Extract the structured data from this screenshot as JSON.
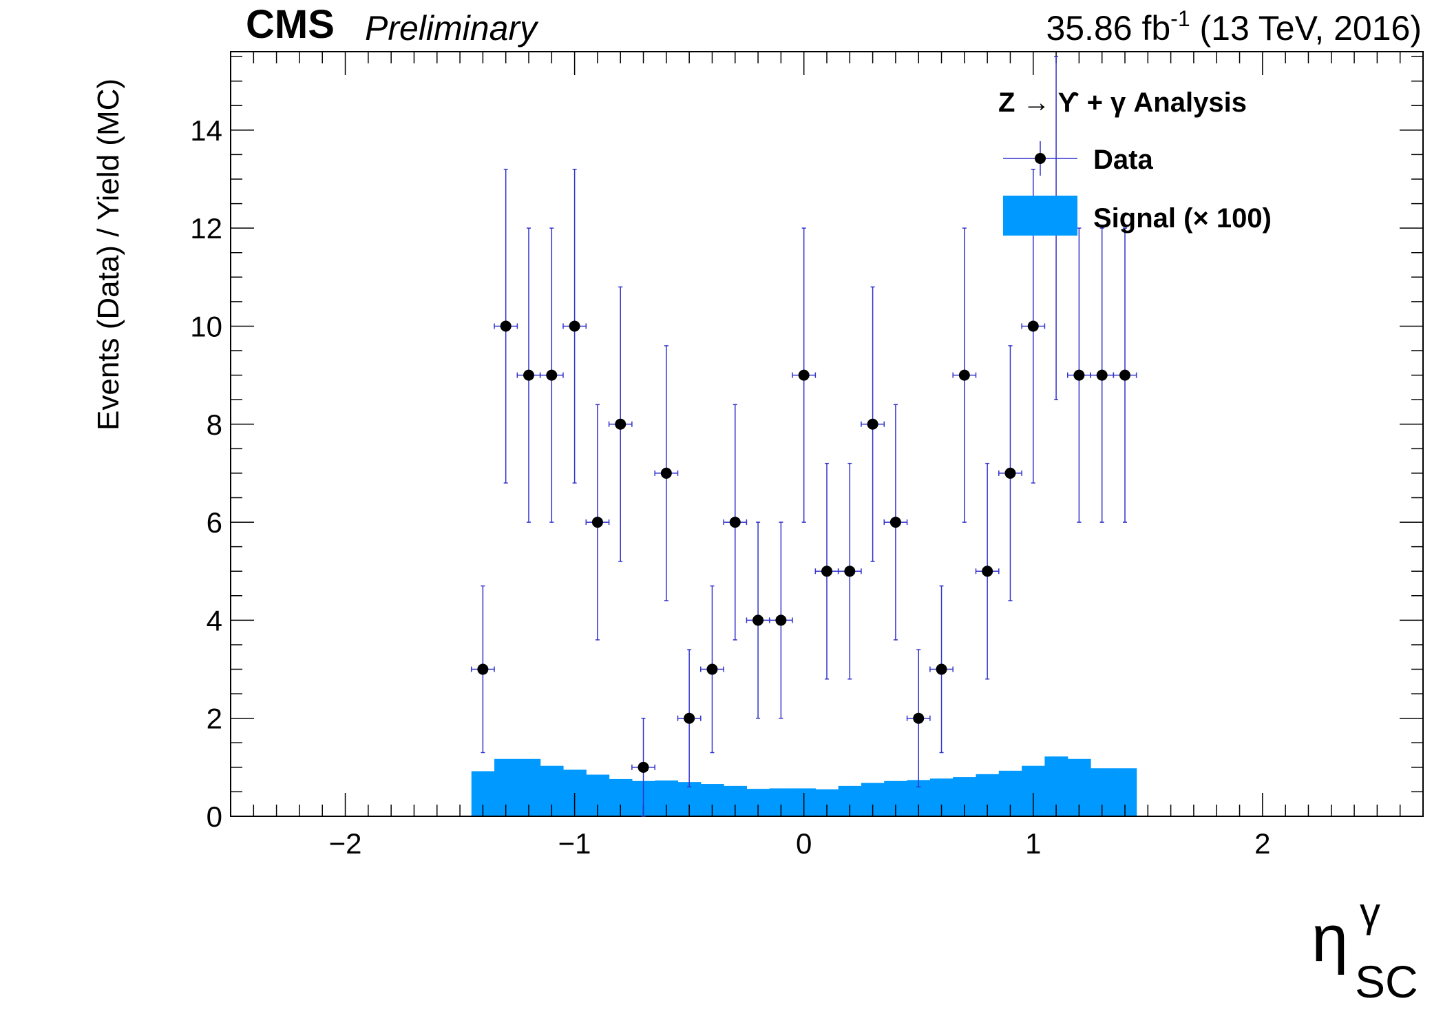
{
  "header": {
    "experiment": "CMS",
    "status": "Preliminary",
    "lumi_value": "35.86 fb",
    "lumi_exp": "-1",
    "lumi_tail": " (13 TeV, 2016)"
  },
  "legend": {
    "header": "Z → ϒ + γ Analysis",
    "data_label": "Data",
    "signal_label": "Signal (× 100)"
  },
  "colors": {
    "signal_fill": "#0099ff",
    "error_bar": "#3333cc",
    "marker": "#000000"
  },
  "chart_data": {
    "type": "bar",
    "title": "",
    "xlabel": "η",
    "xlabel_sup": "γ",
    "xlabel_sub": "SC",
    "ylabel": "Events (Data) / Yield (MC)",
    "xlim": [
      -2.5,
      2.7
    ],
    "ylim": [
      0,
      15.6
    ],
    "x_ticks": [
      -2,
      -1,
      0,
      1,
      2
    ],
    "x_tick_labels": [
      "−2",
      "−1",
      "0",
      "1",
      "2"
    ],
    "y_ticks": [
      0,
      2,
      4,
      6,
      8,
      10,
      12,
      14
    ],
    "y_tick_labels": [
      "0",
      "2",
      "4",
      "6",
      "8",
      "10",
      "12",
      "14"
    ],
    "grid": false,
    "legend_position": "top-right",
    "series": [
      {
        "name": "Data",
        "kind": "points-with-errors",
        "x": [
          -1.4,
          -1.3,
          -1.2,
          -1.1,
          -1.0,
          -0.9,
          -0.8,
          -0.7,
          -0.6,
          -0.5,
          -0.4,
          -0.3,
          -0.2,
          -0.1,
          0.0,
          0.1,
          0.2,
          0.3,
          0.4,
          0.5,
          0.6,
          0.7,
          0.8,
          0.9,
          1.0,
          1.1,
          1.2,
          1.3,
          1.4
        ],
        "y": [
          3,
          10,
          9,
          9,
          10,
          6,
          8,
          1,
          7,
          2,
          3,
          6,
          4,
          4,
          9,
          5,
          5,
          8,
          6,
          2,
          3,
          9,
          5,
          7,
          10,
          12,
          9,
          9,
          9
        ],
        "yerr_low": [
          1.7,
          3.2,
          3.0,
          3.0,
          3.2,
          2.4,
          2.8,
          1.0,
          2.6,
          1.4,
          1.7,
          2.4,
          2.0,
          2.0,
          3.0,
          2.2,
          2.2,
          2.8,
          2.4,
          1.4,
          1.7,
          3.0,
          2.2,
          2.6,
          3.2,
          3.5,
          3.0,
          3.0,
          3.0
        ],
        "yerr_high": [
          1.7,
          3.2,
          3.0,
          3.0,
          3.2,
          2.4,
          2.8,
          1.0,
          2.6,
          1.4,
          1.7,
          2.4,
          2.0,
          2.0,
          3.0,
          2.2,
          2.2,
          2.8,
          2.4,
          1.4,
          1.7,
          3.0,
          2.2,
          2.6,
          3.2,
          3.5,
          3.0,
          3.0,
          3.0
        ]
      },
      {
        "name": "Signal (× 100)",
        "kind": "histogram",
        "bin_edges": [
          -1.45,
          -1.35,
          -1.25,
          -1.15,
          -1.05,
          -0.95,
          -0.85,
          -0.75,
          -0.65,
          -0.55,
          -0.45,
          -0.35,
          -0.25,
          -0.15,
          -0.05,
          0.05,
          0.15,
          0.25,
          0.35,
          0.45,
          0.55,
          0.65,
          0.75,
          0.85,
          0.95,
          1.05,
          1.15,
          1.25,
          1.35,
          1.45
        ],
        "values": [
          0.92,
          1.17,
          1.17,
          1.03,
          0.95,
          0.85,
          0.76,
          0.72,
          0.73,
          0.7,
          0.66,
          0.62,
          0.56,
          0.57,
          0.57,
          0.55,
          0.62,
          0.68,
          0.72,
          0.74,
          0.77,
          0.8,
          0.86,
          0.93,
          1.03,
          1.22,
          1.17,
          0.98,
          0.98
        ]
      }
    ]
  }
}
